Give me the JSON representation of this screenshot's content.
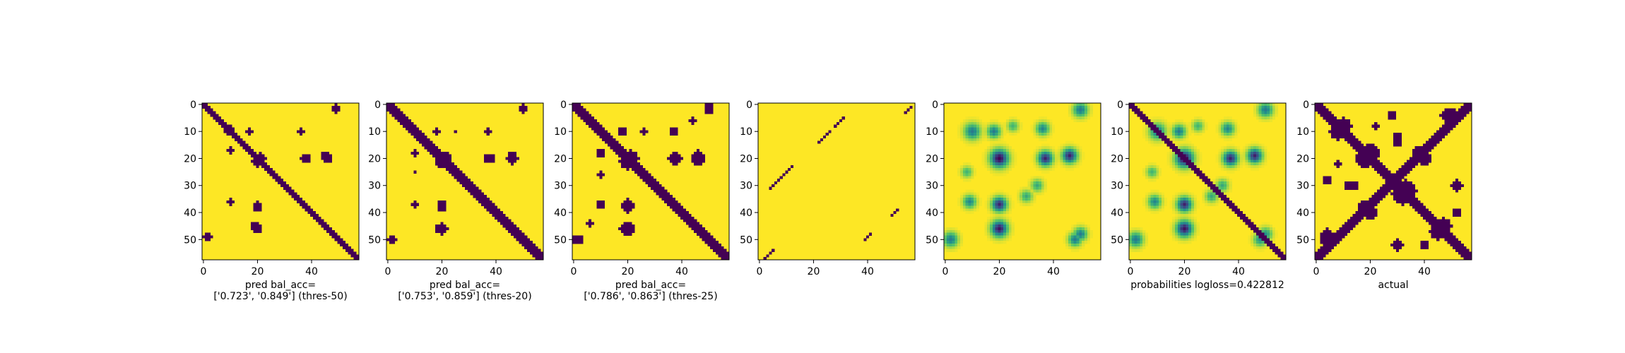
{
  "chart_data": [
    {
      "type": "heatmap",
      "caption_lines": [
        "pred bal_acc=",
        "['0.723', '0.849'] (thres-50)"
      ],
      "xticks": [
        0,
        20,
        40
      ],
      "yticks": [
        0,
        10,
        20,
        30,
        40,
        50
      ],
      "grid_size": 58,
      "values_kind": "binary",
      "colors": {
        "low": "#440154",
        "high": "#fde725"
      },
      "dark_regions": [
        {
          "kind": "diagonal_band",
          "half_width": 1.8
        },
        {
          "kind": "blob",
          "cx": 21,
          "cy": 20,
          "r": 2.2
        },
        {
          "kind": "blob",
          "cx": 38,
          "cy": 20,
          "r": 1.5
        },
        {
          "kind": "blob",
          "cx": 45,
          "cy": 19,
          "r": 1.5
        },
        {
          "kind": "blob",
          "cx": 20,
          "cy": 37,
          "r": 1.3
        },
        {
          "kind": "blob",
          "cx": 20,
          "cy": 46,
          "r": 1.8
        },
        {
          "kind": "blob",
          "cx": 9,
          "cy": 10,
          "r": 1.2
        },
        {
          "kind": "blob",
          "cx": 17,
          "cy": 10,
          "r": 1.0
        },
        {
          "kind": "blob",
          "cx": 36,
          "cy": 10,
          "r": 1.0
        },
        {
          "kind": "blob",
          "cx": 10,
          "cy": 36,
          "r": 1.0
        },
        {
          "kind": "blob",
          "cx": 49,
          "cy": 1,
          "r": 1.3
        },
        {
          "kind": "blob",
          "cx": 2,
          "cy": 49,
          "r": 1.3
        }
      ]
    },
    {
      "type": "heatmap",
      "caption_lines": [
        "pred bal_acc=",
        "['0.753', '0.859'] (thres-20)"
      ],
      "xticks": [
        0,
        20,
        40
      ],
      "yticks": [
        0,
        10,
        20,
        30,
        40,
        50
      ],
      "grid_size": 58,
      "values_kind": "binary",
      "colors": {
        "low": "#440154",
        "high": "#fde725"
      },
      "dark_regions": [
        {
          "kind": "diagonal_band",
          "half_width": 2.0
        },
        {
          "kind": "blob",
          "cx": 21,
          "cy": 20,
          "r": 2.6
        },
        {
          "kind": "blob",
          "cx": 38,
          "cy": 20,
          "r": 1.8
        },
        {
          "kind": "blob",
          "cx": 46,
          "cy": 19,
          "r": 1.8
        },
        {
          "kind": "blob",
          "cx": 20,
          "cy": 37,
          "r": 1.8
        },
        {
          "kind": "blob",
          "cx": 20,
          "cy": 46,
          "r": 2.0
        },
        {
          "kind": "blob",
          "cx": 9,
          "cy": 9,
          "r": 1.6
        },
        {
          "kind": "blob",
          "cx": 18,
          "cy": 10,
          "r": 1.3
        },
        {
          "kind": "blob",
          "cx": 37,
          "cy": 10,
          "r": 1.2
        },
        {
          "kind": "blob",
          "cx": 10,
          "cy": 37,
          "r": 1.2
        },
        {
          "kind": "blob",
          "cx": 50,
          "cy": 1,
          "r": 1.4
        },
        {
          "kind": "blob",
          "cx": 2,
          "cy": 50,
          "r": 1.4
        },
        {
          "kind": "blob",
          "cx": 10,
          "cy": 25,
          "r": 0.9
        },
        {
          "kind": "blob",
          "cx": 25,
          "cy": 10,
          "r": 0.9
        }
      ]
    },
    {
      "type": "heatmap",
      "caption_lines": [
        "pred bal_acc=",
        "['0.786', '0.863'] (thres-25)"
      ],
      "xticks": [
        0,
        20,
        40
      ],
      "yticks": [
        0,
        10,
        20,
        30,
        40,
        50
      ],
      "grid_size": 58,
      "values_kind": "binary",
      "colors": {
        "low": "#440154",
        "high": "#fde725"
      },
      "dark_regions": [
        {
          "kind": "diagonal_band",
          "half_width": 2.2
        },
        {
          "kind": "blob",
          "cx": 21,
          "cy": 20,
          "r": 3.0
        },
        {
          "kind": "blob",
          "cx": 38,
          "cy": 20,
          "r": 2.2
        },
        {
          "kind": "blob",
          "cx": 46,
          "cy": 19,
          "r": 2.0
        },
        {
          "kind": "blob",
          "cx": 20,
          "cy": 37,
          "r": 2.2
        },
        {
          "kind": "blob",
          "cx": 20,
          "cy": 46,
          "r": 2.4
        },
        {
          "kind": "blob",
          "cx": 9,
          "cy": 9,
          "r": 1.8
        },
        {
          "kind": "blob",
          "cx": 18,
          "cy": 10,
          "r": 1.6
        },
        {
          "kind": "blob",
          "cx": 37,
          "cy": 10,
          "r": 1.5
        },
        {
          "kind": "blob",
          "cx": 10,
          "cy": 37,
          "r": 1.5
        },
        {
          "kind": "blob",
          "cx": 50,
          "cy": 1,
          "r": 1.6
        },
        {
          "kind": "blob",
          "cx": 2,
          "cy": 50,
          "r": 1.6
        },
        {
          "kind": "blob",
          "cx": 10,
          "cy": 26,
          "r": 1.1
        },
        {
          "kind": "blob",
          "cx": 26,
          "cy": 10,
          "r": 1.1
        },
        {
          "kind": "blob",
          "cx": 6,
          "cy": 44,
          "r": 1.0
        }
      ]
    },
    {
      "type": "heatmap",
      "caption_lines": [],
      "xticks": [
        0,
        20,
        40
      ],
      "yticks": [
        0,
        10,
        20,
        30,
        40,
        50
      ],
      "grid_size": 58,
      "values_kind": "binary",
      "colors": {
        "low": "#440154",
        "high": "#fde725"
      },
      "dark_segments": [
        {
          "x0": 2,
          "y0": 57,
          "x1": 5,
          "y1": 54
        },
        {
          "x0": 4,
          "y0": 31,
          "x1": 12,
          "y1": 23
        },
        {
          "x0": 22,
          "y0": 14,
          "x1": 26,
          "y1": 10
        },
        {
          "x0": 28,
          "y0": 8,
          "x1": 31,
          "y1": 5
        },
        {
          "x0": 54,
          "y0": 3,
          "x1": 56,
          "y1": 1
        },
        {
          "x0": 39,
          "y0": 50,
          "x1": 41,
          "y1": 48
        },
        {
          "x0": 49,
          "y0": 41,
          "x1": 51,
          "y1": 39
        }
      ]
    },
    {
      "type": "heatmap",
      "caption_lines": [],
      "xticks": [
        0,
        20,
        40
      ],
      "yticks": [
        0,
        10,
        20,
        30,
        40,
        50
      ],
      "grid_size": 58,
      "values_kind": "probability",
      "colormap": "viridis",
      "include_diagonal": false,
      "peaks": [
        {
          "cx": 20,
          "cy": 20,
          "sigma": 2.2,
          "amp": 1.0
        },
        {
          "cx": 37,
          "cy": 20,
          "sigma": 1.8,
          "amp": 0.9
        },
        {
          "cx": 46,
          "cy": 19,
          "sigma": 1.8,
          "amp": 0.9
        },
        {
          "cx": 20,
          "cy": 37,
          "sigma": 1.8,
          "amp": 0.9
        },
        {
          "cx": 20,
          "cy": 46,
          "sigma": 2.0,
          "amp": 0.95
        },
        {
          "cx": 10,
          "cy": 10,
          "sigma": 2.0,
          "amp": 0.6
        },
        {
          "cx": 18,
          "cy": 10,
          "sigma": 1.6,
          "amp": 0.6
        },
        {
          "cx": 36,
          "cy": 9,
          "sigma": 1.6,
          "amp": 0.55
        },
        {
          "cx": 9,
          "cy": 36,
          "sigma": 1.6,
          "amp": 0.55
        },
        {
          "cx": 50,
          "cy": 2,
          "sigma": 1.8,
          "amp": 0.6
        },
        {
          "cx": 2,
          "cy": 50,
          "sigma": 1.8,
          "amp": 0.6
        },
        {
          "cx": 30,
          "cy": 34,
          "sigma": 1.5,
          "amp": 0.4
        },
        {
          "cx": 34,
          "cy": 30,
          "sigma": 1.5,
          "amp": 0.4
        },
        {
          "cx": 50,
          "cy": 48,
          "sigma": 1.6,
          "amp": 0.6
        },
        {
          "cx": 48,
          "cy": 50,
          "sigma": 1.6,
          "amp": 0.6
        },
        {
          "cx": 25,
          "cy": 8,
          "sigma": 1.4,
          "amp": 0.35
        },
        {
          "cx": 8,
          "cy": 25,
          "sigma": 1.4,
          "amp": 0.35
        }
      ]
    },
    {
      "type": "heatmap",
      "caption_lines": [
        "probabilities logloss=0.422812"
      ],
      "xticks": [
        0,
        20,
        40
      ],
      "yticks": [
        0,
        10,
        20,
        30,
        40,
        50
      ],
      "grid_size": 58,
      "values_kind": "probability",
      "colormap": "viridis",
      "include_diagonal": true,
      "diagonal_half_width": 1.8,
      "peaks": [
        {
          "cx": 20,
          "cy": 20,
          "sigma": 2.2,
          "amp": 1.0
        },
        {
          "cx": 37,
          "cy": 20,
          "sigma": 1.8,
          "amp": 0.9
        },
        {
          "cx": 46,
          "cy": 19,
          "sigma": 1.8,
          "amp": 0.9
        },
        {
          "cx": 20,
          "cy": 37,
          "sigma": 1.8,
          "amp": 0.9
        },
        {
          "cx": 20,
          "cy": 46,
          "sigma": 2.0,
          "amp": 0.95
        },
        {
          "cx": 10,
          "cy": 10,
          "sigma": 2.0,
          "amp": 0.6
        },
        {
          "cx": 18,
          "cy": 10,
          "sigma": 1.6,
          "amp": 0.6
        },
        {
          "cx": 36,
          "cy": 9,
          "sigma": 1.6,
          "amp": 0.55
        },
        {
          "cx": 9,
          "cy": 36,
          "sigma": 1.6,
          "amp": 0.55
        },
        {
          "cx": 50,
          "cy": 2,
          "sigma": 1.8,
          "amp": 0.6
        },
        {
          "cx": 2,
          "cy": 50,
          "sigma": 1.8,
          "amp": 0.6
        },
        {
          "cx": 30,
          "cy": 34,
          "sigma": 1.5,
          "amp": 0.4
        },
        {
          "cx": 34,
          "cy": 30,
          "sigma": 1.5,
          "amp": 0.4
        },
        {
          "cx": 50,
          "cy": 48,
          "sigma": 1.6,
          "amp": 0.5
        },
        {
          "cx": 48,
          "cy": 50,
          "sigma": 1.6,
          "amp": 0.5
        },
        {
          "cx": 25,
          "cy": 8,
          "sigma": 1.4,
          "amp": 0.35
        },
        {
          "cx": 8,
          "cy": 25,
          "sigma": 1.4,
          "amp": 0.35
        }
      ]
    },
    {
      "type": "heatmap",
      "caption_lines": [
        "actual"
      ],
      "xticks": [
        0,
        20,
        40
      ],
      "yticks": [
        0,
        10,
        20,
        30,
        40,
        50
      ],
      "grid_size": 58,
      "values_kind": "binary",
      "colors": {
        "low": "#440154",
        "high": "#fde725"
      },
      "dark_regions": [
        {
          "kind": "diagonal_band",
          "half_width": 2.5
        },
        {
          "kind": "anti_diagonal_band",
          "offset": 57,
          "half_width": 2.0
        },
        {
          "kind": "blob",
          "cx": 20,
          "cy": 18,
          "r": 3.5
        },
        {
          "kind": "blob",
          "cx": 33,
          "cy": 32,
          "r": 4.0
        },
        {
          "kind": "blob",
          "cx": 10,
          "cy": 8,
          "r": 3.0
        },
        {
          "kind": "blob",
          "cx": 38,
          "cy": 18,
          "r": 2.5
        },
        {
          "kind": "blob",
          "cx": 47,
          "cy": 45,
          "r": 3.0
        },
        {
          "kind": "blob",
          "cx": 48,
          "cy": 4,
          "r": 2.0
        },
        {
          "kind": "blob",
          "cx": 4,
          "cy": 50,
          "r": 2.5
        },
        {
          "kind": "blob",
          "cx": 20,
          "cy": 40,
          "r": 2.5
        },
        {
          "kind": "blob",
          "cx": 52,
          "cy": 30,
          "r": 2.0
        },
        {
          "kind": "blob",
          "cx": 14,
          "cy": 30,
          "r": 1.8
        },
        {
          "kind": "blob",
          "cx": 28,
          "cy": 4,
          "r": 1.6
        },
        {
          "kind": "blob",
          "cx": 40,
          "cy": 52,
          "r": 1.8
        },
        {
          "kind": "blob",
          "cx": 30,
          "cy": 12,
          "r": 1.5
        },
        {
          "kind": "blob",
          "cx": 8,
          "cy": 22,
          "r": 1.4
        }
      ]
    }
  ]
}
